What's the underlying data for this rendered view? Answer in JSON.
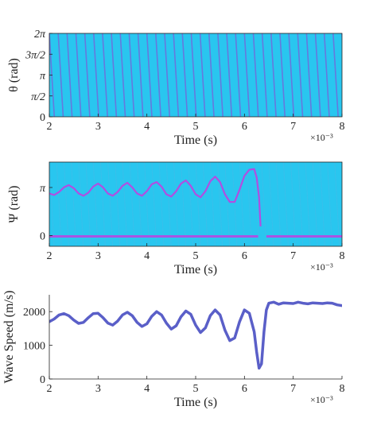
{
  "figure": {
    "colors": {
      "heatmap_bg": "#29c6ef",
      "heatmap_stripe": "#7a5fd8",
      "heatmap_trace": "#c040e0",
      "line_color": "#5a5fc8",
      "axis_color": "#222222"
    }
  },
  "chart_data": [
    {
      "type": "heatmap",
      "title": "",
      "xlabel": "Time (s)",
      "ylabel": "θ (rad)",
      "x_exponent_label": "×10⁻³",
      "xlim": [
        2,
        8
      ],
      "ylim": [
        0,
        6.2832
      ],
      "xticks": [
        2,
        3,
        4,
        5,
        6,
        7,
        8
      ],
      "yticks": [
        {
          "value": 0,
          "label": "0"
        },
        {
          "value": 1.5708,
          "label": "π/2"
        },
        {
          "value": 3.1416,
          "label": "π"
        },
        {
          "value": 4.7124,
          "label": "3π/2"
        },
        {
          "value": 6.2832,
          "label": "2π"
        }
      ],
      "description_values": {
        "stripe_count": 33,
        "stripe_drift_per_height": 0.06
      }
    },
    {
      "type": "heatmap",
      "title": "",
      "xlabel": "Time (s)",
      "ylabel": "Ψ (rad)",
      "x_exponent_label": "×10⁻³",
      "xlim": [
        2,
        8
      ],
      "ylim": [
        -0.7,
        4.8
      ],
      "xticks": [
        2,
        3,
        4,
        5,
        6,
        7,
        8
      ],
      "yticks": [
        {
          "value": 0,
          "label": "0"
        },
        {
          "value": 3.1416,
          "label": "π"
        }
      ],
      "upper_trace": {
        "x": [
          2.0,
          2.1,
          2.2,
          2.3,
          2.4,
          2.5,
          2.6,
          2.7,
          2.8,
          2.9,
          3.0,
          3.1,
          3.2,
          3.3,
          3.4,
          3.5,
          3.6,
          3.7,
          3.8,
          3.9,
          4.0,
          4.1,
          4.2,
          4.3,
          4.4,
          4.5,
          4.6,
          4.7,
          4.8,
          4.9,
          5.0,
          5.1,
          5.2,
          5.3,
          5.4,
          5.5,
          5.6,
          5.7,
          5.8,
          5.9,
          6.0,
          6.1,
          6.2,
          6.25,
          6.3,
          6.33
        ],
        "y": [
          2.75,
          2.65,
          2.85,
          3.15,
          3.3,
          3.1,
          2.75,
          2.6,
          2.8,
          3.2,
          3.4,
          3.15,
          2.75,
          2.6,
          2.85,
          3.25,
          3.45,
          3.15,
          2.75,
          2.6,
          2.9,
          3.35,
          3.5,
          3.2,
          2.7,
          2.55,
          2.9,
          3.4,
          3.6,
          3.25,
          2.7,
          2.5,
          2.9,
          3.55,
          3.85,
          3.5,
          2.7,
          2.2,
          2.2,
          3.0,
          3.9,
          4.3,
          4.35,
          3.8,
          2.5,
          0.6
        ]
      },
      "lower_trace": {
        "x": [
          2.0,
          6.28,
          6.45,
          8.0
        ],
        "y": [
          -0.05,
          -0.05,
          -0.05,
          -0.05
        ]
      }
    },
    {
      "type": "line",
      "title": "",
      "xlabel": "Time (s)",
      "ylabel": "Wave Speed (m/s)",
      "x_exponent_label": "×10⁻³",
      "xlim": [
        2,
        8
      ],
      "ylim": [
        0,
        2500
      ],
      "xticks": [
        2,
        3,
        4,
        5,
        6,
        7,
        8
      ],
      "yticks": [
        0,
        1000,
        2000
      ],
      "grid": false,
      "series": [
        {
          "name": "",
          "x": [
            2.0,
            2.1,
            2.2,
            2.3,
            2.4,
            2.5,
            2.6,
            2.7,
            2.8,
            2.9,
            3.0,
            3.1,
            3.2,
            3.3,
            3.4,
            3.5,
            3.6,
            3.7,
            3.8,
            3.9,
            4.0,
            4.1,
            4.2,
            4.3,
            4.4,
            4.5,
            4.6,
            4.7,
            4.8,
            4.9,
            5.0,
            5.1,
            5.2,
            5.3,
            5.4,
            5.5,
            5.6,
            5.7,
            5.8,
            5.9,
            6.0,
            6.1,
            6.2,
            6.25,
            6.3,
            6.35,
            6.4,
            6.45,
            6.5,
            6.6,
            6.7,
            6.8,
            6.9,
            7.0,
            7.1,
            7.2,
            7.3,
            7.4,
            7.5,
            7.6,
            7.7,
            7.8,
            7.9,
            8.0
          ],
          "y": [
            1700,
            1780,
            1900,
            1940,
            1880,
            1750,
            1650,
            1680,
            1820,
            1940,
            1950,
            1820,
            1660,
            1600,
            1720,
            1900,
            1980,
            1880,
            1680,
            1560,
            1640,
            1860,
            2000,
            1900,
            1660,
            1480,
            1580,
            1850,
            2020,
            1920,
            1600,
            1380,
            1520,
            1880,
            2050,
            1900,
            1450,
            1140,
            1220,
            1700,
            2050,
            1950,
            1400,
            800,
            320,
            450,
            1400,
            2050,
            2250,
            2280,
            2220,
            2260,
            2250,
            2240,
            2280,
            2250,
            2230,
            2260,
            2250,
            2240,
            2260,
            2250,
            2200,
            2180
          ]
        }
      ]
    }
  ]
}
